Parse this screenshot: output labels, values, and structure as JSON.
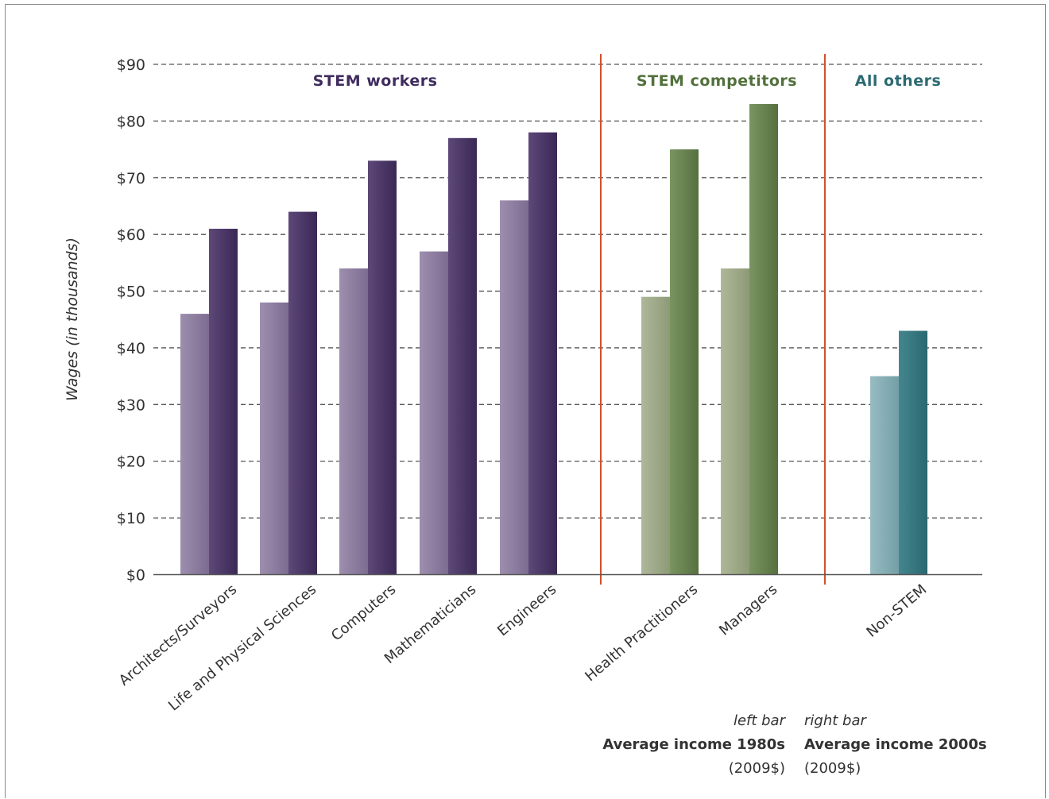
{
  "chart_data": {
    "type": "bar",
    "title": "",
    "ylabel": "Wages (in thousands)",
    "xlabel": "",
    "ylim": [
      0,
      90
    ],
    "yticks": [
      "$0",
      "$10",
      "$20",
      "$30",
      "$40",
      "$50",
      "$60",
      "$70",
      "$80",
      "$90"
    ],
    "grid": true,
    "groups": [
      {
        "label": "STEM workers",
        "color": "#4e3a6e",
        "categories": [
          "Architects/Surveyors",
          "Life and Physical Sciences",
          "Computers",
          "Mathematicians",
          "Engineers"
        ]
      },
      {
        "label": "STEM competitors",
        "color": "#5e7a48",
        "categories": [
          "Health Practitioners",
          "Managers"
        ]
      },
      {
        "label": "All others",
        "color": "#2f6f78",
        "categories": [
          "Non-STEM"
        ]
      }
    ],
    "categories": [
      "Architects/Surveyors",
      "Life and Physical Sciences",
      "Computers",
      "Mathematicians",
      "Engineers",
      "Health Practitioners",
      "Managers",
      "Non-STEM"
    ],
    "series": [
      {
        "name": "Average income 1980s",
        "values": [
          46,
          48,
          54,
          57,
          66,
          49,
          54,
          35
        ]
      },
      {
        "name": "Average income 2000s",
        "values": [
          61,
          64,
          73,
          77,
          78,
          75,
          83,
          43
        ]
      }
    ],
    "colors": {
      "stem_light": "#8f7fa0",
      "stem_dark": "#4a3566",
      "comp_light": "#9eaa88",
      "comp_dark": "#6a8452",
      "other_light": "#86aeb5",
      "other_dark": "#36777f",
      "divider": "#d2502a",
      "grid": "#555555"
    },
    "legend": {
      "left_caption": "left bar",
      "right_caption": "right bar",
      "left_title": "Average income 1980s",
      "right_title": "Average income 2000s",
      "left_unit": "(2009$)",
      "right_unit": "(2009$)"
    }
  }
}
